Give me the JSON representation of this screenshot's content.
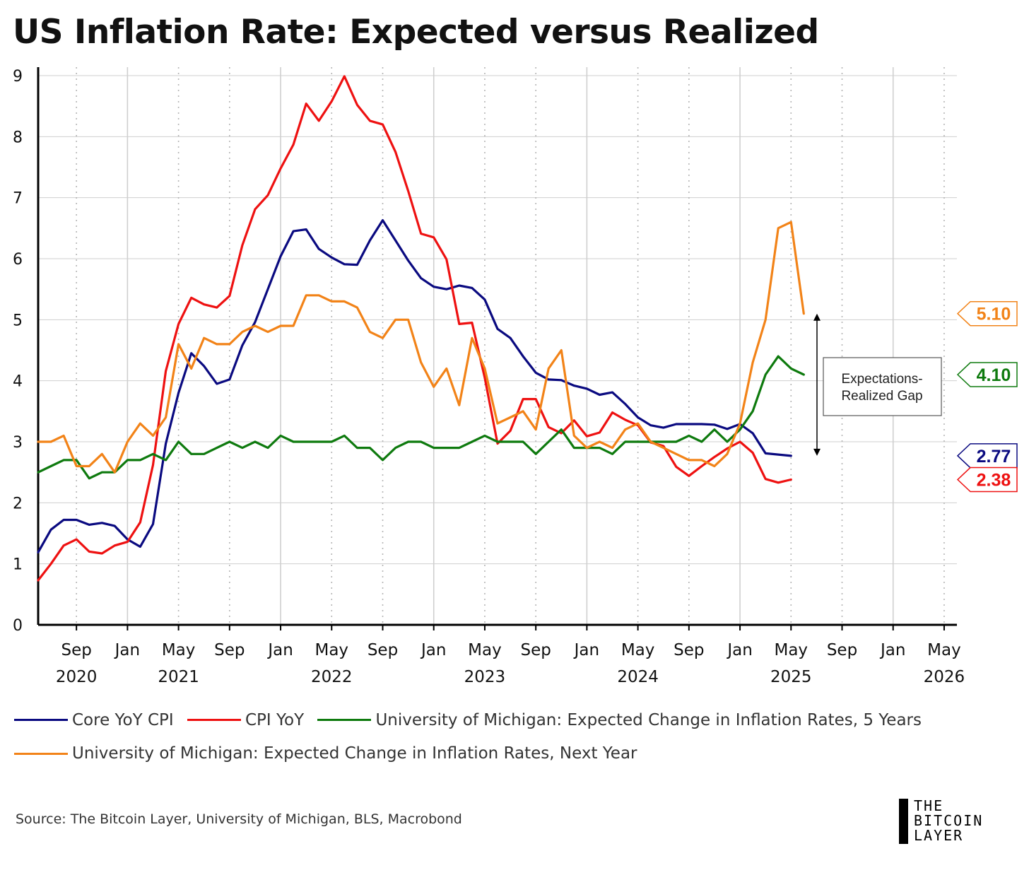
{
  "title": "US Inflation Rate: Expected versus Realized",
  "source": "Source: The Bitcoin Layer, University of Michigan, BLS, Macrobond",
  "brand": {
    "line1": "THE",
    "line2": "BITCOIN",
    "line3": "LAYER"
  },
  "chart_data": {
    "type": "line",
    "title": "US Inflation Rate: Expected versus Realized",
    "xlabel": "",
    "ylabel": "",
    "ylim": [
      0,
      9
    ],
    "yticks": [
      "0",
      "1",
      "2",
      "3",
      "4",
      "5",
      "6",
      "7",
      "8",
      "9"
    ],
    "xlim": [
      "2020-06",
      "2026-06"
    ],
    "xticks": [
      {
        "date": "2020-09",
        "month": "Sep",
        "year": "2020"
      },
      {
        "date": "2021-01",
        "month": "Jan",
        "year": ""
      },
      {
        "date": "2021-05",
        "month": "May",
        "year": "2021"
      },
      {
        "date": "2021-09",
        "month": "Sep",
        "year": ""
      },
      {
        "date": "2022-01",
        "month": "Jan",
        "year": ""
      },
      {
        "date": "2022-05",
        "month": "May",
        "year": "2022"
      },
      {
        "date": "2022-09",
        "month": "Sep",
        "year": ""
      },
      {
        "date": "2023-01",
        "month": "Jan",
        "year": ""
      },
      {
        "date": "2023-05",
        "month": "May",
        "year": "2023"
      },
      {
        "date": "2023-09",
        "month": "Sep",
        "year": ""
      },
      {
        "date": "2024-01",
        "month": "Jan",
        "year": ""
      },
      {
        "date": "2024-05",
        "month": "May",
        "year": "2024"
      },
      {
        "date": "2024-09",
        "month": "Sep",
        "year": ""
      },
      {
        "date": "2025-01",
        "month": "Jan",
        "year": ""
      },
      {
        "date": "2025-05",
        "month": "May",
        "year": "2025"
      },
      {
        "date": "2025-09",
        "month": "Sep",
        "year": ""
      },
      {
        "date": "2026-01",
        "month": "Jan",
        "year": ""
      },
      {
        "date": "2026-05",
        "month": "May",
        "year": "2026"
      }
    ],
    "grid": true,
    "legend_position": "bottom",
    "series": [
      {
        "name": "Core YoY CPI",
        "color": "#0a0a80",
        "start": "2020-06",
        "values": [
          1.19,
          1.56,
          1.72,
          1.72,
          1.64,
          1.67,
          1.62,
          1.4,
          1.28,
          1.65,
          2.97,
          3.8,
          4.45,
          4.24,
          3.95,
          4.02,
          4.58,
          4.96,
          5.5,
          6.04,
          6.45,
          6.48,
          6.16,
          6.02,
          5.91,
          5.9,
          6.3,
          6.63,
          6.3,
          5.97,
          5.68,
          5.54,
          5.5,
          5.56,
          5.52,
          5.33,
          4.85,
          4.7,
          4.4,
          4.13,
          4.02,
          4.01,
          3.92,
          3.87,
          3.77,
          3.81,
          3.62,
          3.4,
          3.27,
          3.23,
          3.29,
          3.29,
          3.29,
          3.28,
          3.21,
          3.29,
          3.14,
          2.81,
          2.79,
          2.77
        ],
        "end_label": "2.77"
      },
      {
        "name": "CPI YoY",
        "color": "#ee1111",
        "start": "2020-06",
        "values": [
          0.73,
          1.0,
          1.3,
          1.4,
          1.2,
          1.17,
          1.3,
          1.36,
          1.68,
          2.62,
          4.16,
          4.93,
          5.36,
          5.25,
          5.2,
          5.39,
          6.22,
          6.81,
          7.04,
          7.48,
          7.87,
          8.54,
          8.26,
          8.58,
          8.99,
          8.52,
          8.26,
          8.2,
          7.75,
          7.11,
          6.41,
          6.35,
          5.99,
          4.93,
          4.95,
          4.05,
          2.97,
          3.18,
          3.7,
          3.7,
          3.24,
          3.14,
          3.35,
          3.09,
          3.15,
          3.48,
          3.36,
          3.27,
          2.99,
          2.93,
          2.59,
          2.44,
          2.6,
          2.75,
          2.89,
          3.0,
          2.82,
          2.39,
          2.33,
          2.38
        ],
        "end_label": "2.38"
      },
      {
        "name": "University of Michigan: Expected Change in Inflation Rates, 5 Years",
        "color": "#0e7a0e",
        "start": "2020-06",
        "values": [
          2.5,
          2.6,
          2.7,
          2.7,
          2.4,
          2.5,
          2.5,
          2.7,
          2.7,
          2.8,
          2.7,
          3.0,
          2.8,
          2.8,
          2.9,
          3.0,
          2.9,
          3.0,
          2.9,
          3.1,
          3.0,
          3.0,
          3.0,
          3.0,
          3.1,
          2.9,
          2.9,
          2.7,
          2.9,
          3.0,
          3.0,
          2.9,
          2.9,
          2.9,
          3.0,
          3.1,
          3.0,
          3.0,
          3.0,
          2.8,
          3.0,
          3.2,
          2.9,
          2.9,
          2.9,
          2.8,
          3.0,
          3.0,
          3.0,
          3.0,
          3.0,
          3.1,
          3.0,
          3.2,
          3.0,
          3.2,
          3.5,
          4.1,
          4.4,
          4.2,
          4.1
        ],
        "end_label": "4.10"
      },
      {
        "name": "University of Michigan: Expected Change in Inflation Rates, Next Year",
        "color": "#f28318",
        "start": "2020-06",
        "values": [
          3.0,
          3.0,
          3.1,
          2.6,
          2.6,
          2.8,
          2.5,
          3.0,
          3.3,
          3.1,
          3.4,
          4.6,
          4.2,
          4.7,
          4.6,
          4.6,
          4.8,
          4.9,
          4.8,
          4.9,
          4.9,
          5.4,
          5.4,
          5.3,
          5.3,
          5.2,
          4.8,
          4.7,
          5.0,
          5.0,
          4.3,
          3.9,
          4.2,
          3.6,
          4.7,
          4.2,
          3.3,
          3.4,
          3.5,
          3.2,
          4.2,
          4.5,
          3.1,
          2.9,
          3.0,
          2.9,
          3.2,
          3.3,
          3.0,
          2.9,
          2.8,
          2.7,
          2.7,
          2.6,
          2.8,
          3.3,
          4.3,
          5.0,
          6.5,
          6.6,
          5.1
        ],
        "end_label": "5.10"
      }
    ],
    "annotations": [
      {
        "text_line1": "Expectations-",
        "text_line2": "Realized Gap",
        "from": 5.1,
        "to": 2.77,
        "date": "2025-10"
      }
    ]
  }
}
